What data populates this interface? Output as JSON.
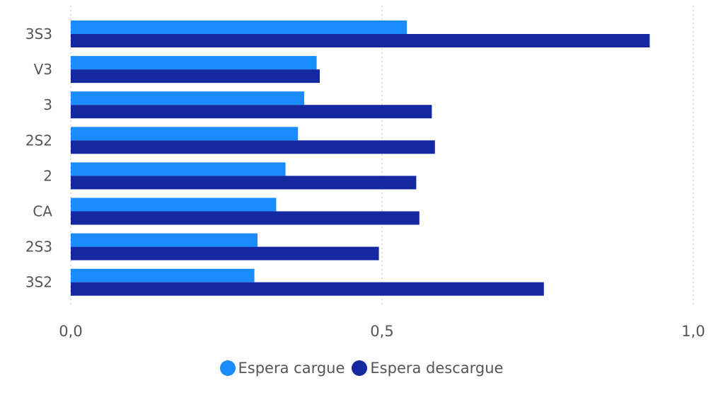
{
  "chart_data": {
    "type": "bar",
    "orientation": "horizontal",
    "categories": [
      "3S3",
      "V3",
      "3",
      "2S2",
      "2",
      "CA",
      "2S3",
      "3S2"
    ],
    "series": [
      {
        "name": "Espera cargue",
        "color": "#1a8cff",
        "values": [
          0.54,
          0.395,
          0.375,
          0.365,
          0.345,
          0.33,
          0.3,
          0.295
        ]
      },
      {
        "name": "Espera descargue",
        "color": "#1428a0",
        "values": [
          0.93,
          0.4,
          0.58,
          0.585,
          0.555,
          0.56,
          0.495,
          0.76
        ]
      }
    ],
    "xlim": [
      0,
      1
    ],
    "x_ticks": [
      "0,0",
      "0,5",
      "1,0"
    ],
    "xlabel": "",
    "ylabel": "",
    "title": "",
    "grid": "vertical dotted",
    "legend": "bottom-center"
  }
}
